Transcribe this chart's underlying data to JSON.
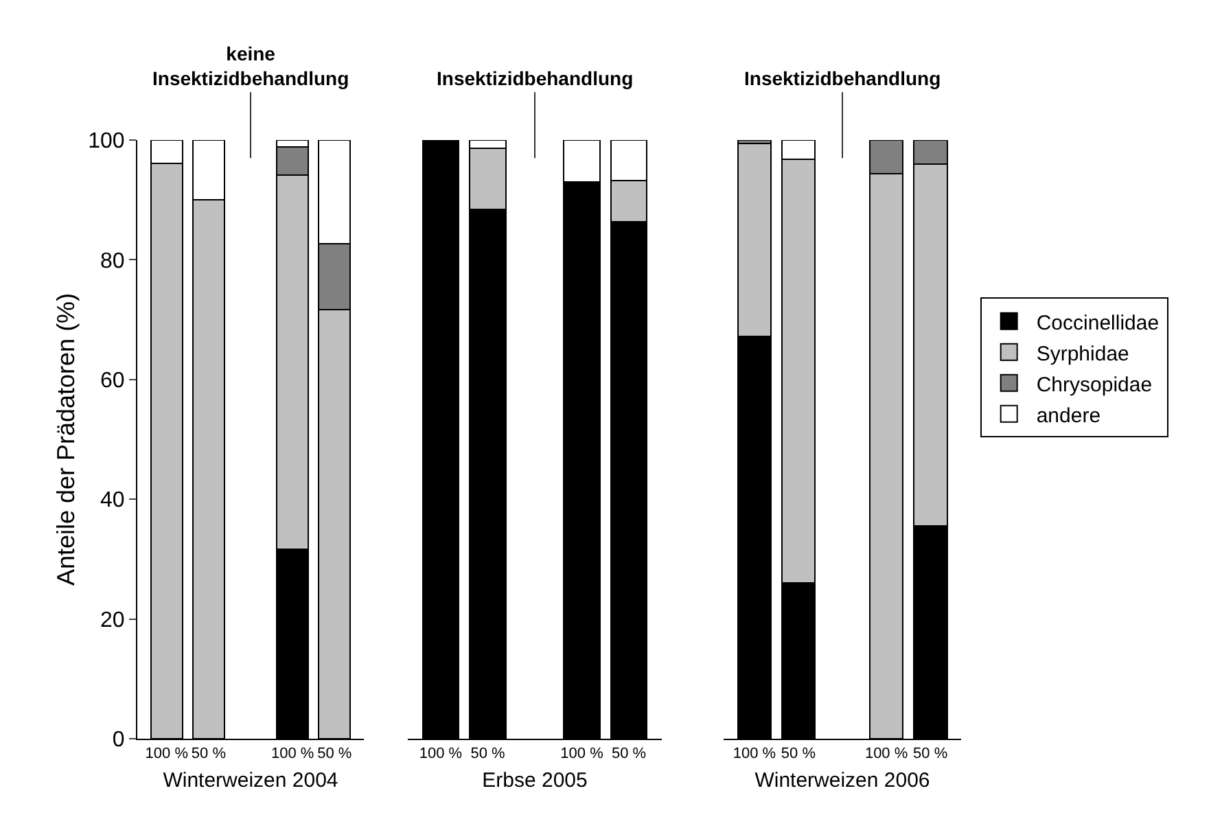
{
  "chart_data": [
    {
      "type": "bar",
      "stacked": true,
      "xlabel": "Winterweizen 2004",
      "ylabel": "Anteile der Prädatoren (%)",
      "annotations": [
        "keine\nInsektizidbehandlung"
      ],
      "categories": [
        "100 %",
        "50 %",
        null,
        "100 %",
        "50 %"
      ],
      "ylim": [
        0,
        100
      ],
      "yticks": [
        0,
        20,
        40,
        60,
        80,
        100
      ],
      "grid": false,
      "legend": false,
      "series": [
        {
          "color": "#000000",
          "values": [
            0,
            0,
            null,
            31.7,
            0
          ]
        },
        {
          "color": "#c0c0c0",
          "values": [
            96.1,
            90,
            null,
            62.4,
            71.7
          ]
        },
        {
          "color": "#808080",
          "values": [
            0,
            0,
            null,
            4.7,
            11
          ]
        },
        {
          "color": "#ffffff",
          "values": [
            3.9,
            10,
            null,
            1.2,
            17.3
          ]
        }
      ]
    },
    {
      "type": "bar",
      "stacked": true,
      "xlabel": "Erbse 2005",
      "annotations": [
        "Insektizidbehandlung"
      ],
      "categories": [
        "100 %",
        "50 %",
        null,
        "100 %",
        "50 %"
      ],
      "ylim": [
        0,
        100
      ],
      "tick_labels": "x",
      "grid": false,
      "legend": false,
      "series": [
        {
          "color": "#000000",
          "values": [
            100,
            88.4,
            null,
            93,
            86.3
          ]
        },
        {
          "color": "#c0c0c0",
          "values": [
            0,
            10.2,
            null,
            0,
            6.9
          ]
        },
        {
          "color": "#808080",
          "values": [
            0,
            0,
            null,
            0,
            0
          ]
        },
        {
          "color": "#ffffff",
          "values": [
            0,
            1.4,
            null,
            7,
            6.8
          ]
        }
      ]
    },
    {
      "type": "bar",
      "stacked": true,
      "xlabel": "Winterweizen 2006",
      "annotations": [
        "Insektizidbehandlung"
      ],
      "categories": [
        "100 %",
        "50 %",
        null,
        "100 %",
        "50 %"
      ],
      "ylim": [
        0,
        100
      ],
      "tick_labels": "x",
      "grid": false,
      "legend": "right",
      "series": [
        {
          "name": "Coccinellidae",
          "color": "#000000",
          "values": [
            67.2,
            26,
            null,
            0,
            35.6
          ]
        },
        {
          "name": "Syrphidae",
          "color": "#c0c0c0",
          "values": [
            32.2,
            70.8,
            null,
            94.4,
            60.4
          ]
        },
        {
          "name": "Chrysopidae",
          "color": "#808080",
          "values": [
            0.6,
            0,
            null,
            5.6,
            4
          ]
        },
        {
          "name": "andere",
          "color": "#ffffff",
          "values": [
            0,
            3.2,
            null,
            0,
            0
          ]
        }
      ]
    }
  ]
}
